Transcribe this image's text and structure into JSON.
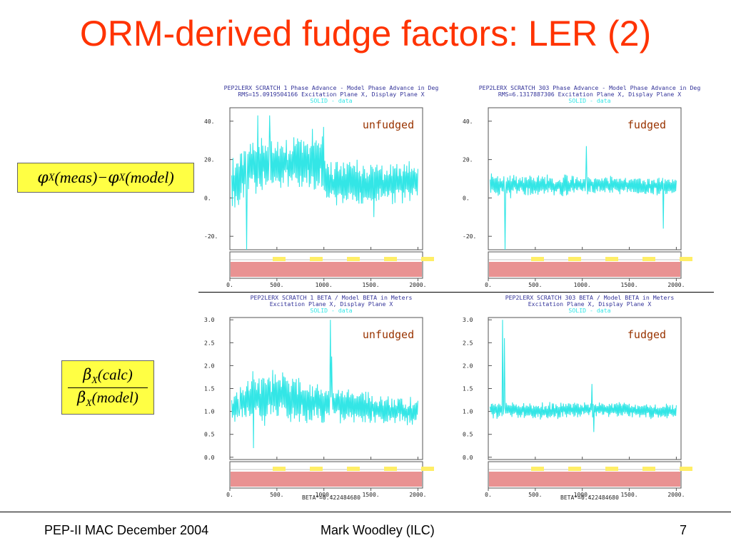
{
  "slide": {
    "title": "ORM-derived fudge factors: LER (2)",
    "footer_left": "PEP-II MAC December 2004",
    "footer_center": "Mark Woodley (ILC)",
    "page_number": "7"
  },
  "formulas": {
    "phase": {
      "phi": "φ",
      "sub": "X",
      "meas": "(meas)−",
      "model": "(model)"
    },
    "beta": {
      "beta": "β",
      "sub": "X",
      "calc": "(calc)",
      "model": "(model)"
    }
  },
  "colors": {
    "title": "#ff3300",
    "trace": "#33e6e6",
    "header_text": "#333399",
    "plot_label": "#993300",
    "bpm_label": "#cc0000"
  },
  "chart_data": [
    {
      "type": "line",
      "id": "tl",
      "header_line1": "PEP2LERX SCRATCH 1 Phase Advance - Model Phase Advance in Deg",
      "header_line2": "RMS=15.0919504166 Excitation Plane X, Display Plane X",
      "legend_text": "SOLID - data",
      "annotation": "unfudged",
      "bottom_note": "",
      "xlim": [
        0,
        2050
      ],
      "ylim": [
        -27,
        47
      ],
      "yticks": [
        40,
        20,
        0,
        -20
      ],
      "ytick_labels": [
        "40.",
        "20.",
        "0.",
        "-20."
      ],
      "xticks": [
        0,
        500,
        1000,
        1500,
        2000
      ],
      "xtick_labels": [
        "0.",
        "500.",
        "1000.",
        "1500.",
        "2000."
      ],
      "trace": {
        "n": 300,
        "seed": 11,
        "base": [
          [
            0,
            5
          ],
          [
            200,
            18
          ],
          [
            1000,
            18
          ],
          [
            1020,
            8
          ],
          [
            2000,
            8
          ]
        ],
        "amp": [
          [
            0,
            28
          ],
          [
            200,
            26
          ],
          [
            1000,
            24
          ],
          [
            1020,
            22
          ],
          [
            2000,
            18
          ]
        ],
        "spikes": [
          [
            180,
            -27
          ],
          [
            300,
            43
          ],
          [
            420,
            43
          ],
          [
            880,
            36
          ],
          [
            1000,
            37
          ],
          [
            1530,
            -10
          ]
        ]
      }
    },
    {
      "type": "line",
      "id": "tr",
      "header_line1": "PEP2LERX SCRATCH 303 Phase Advance - Model Phase Advance in Deg",
      "header_line2": "RMS=6.1317887306 Excitation Plane X, Display Plane X",
      "legend_text": "SOLID - data",
      "annotation": "fudged",
      "bottom_note": "",
      "xlim": [
        0,
        2050
      ],
      "ylim": [
        -27,
        47
      ],
      "yticks": [
        40,
        20,
        0,
        -20
      ],
      "ytick_labels": [
        "40.",
        "20.",
        "0.",
        "-20."
      ],
      "xticks": [
        0,
        500,
        1000,
        1500,
        2000
      ],
      "xtick_labels": [
        "0.",
        "500.",
        "1000.",
        "1500.",
        "2000."
      ],
      "trace": {
        "n": 300,
        "seed": 23,
        "base": [
          [
            0,
            7
          ],
          [
            500,
            6
          ],
          [
            1000,
            7
          ],
          [
            2000,
            6
          ]
        ],
        "amp": [
          [
            0,
            12
          ],
          [
            500,
            10
          ],
          [
            1000,
            9
          ],
          [
            2000,
            8
          ]
        ],
        "spikes": [
          [
            180,
            -27
          ],
          [
            1040,
            27
          ],
          [
            1860,
            -16
          ]
        ]
      }
    },
    {
      "type": "line",
      "id": "bl",
      "header_line1": "PEP2LERX SCRATCH 1 BETA / Model BETA in Meters",
      "header_line2": "Excitation Plane X, Display Plane X",
      "legend_text": "SOLID - data",
      "annotation": "unfudged",
      "bottom_note": "BETA*=0.422484680",
      "xlim": [
        0,
        2050
      ],
      "ylim": [
        -0.05,
        3.05
      ],
      "yticks": [
        3.0,
        2.5,
        2.0,
        1.5,
        1.0,
        0.5,
        0.0
      ],
      "ytick_labels": [
        "3.0",
        "2.5",
        "2.0",
        "1.5",
        "1.0",
        "0.5",
        "0.0"
      ],
      "xticks": [
        0,
        500,
        1000,
        1500,
        2000
      ],
      "xtick_labels": [
        "0.",
        "500.",
        "1000.",
        "1500.",
        "2000."
      ],
      "trace": {
        "n": 300,
        "seed": 37,
        "base": [
          [
            0,
            1.05
          ],
          [
            200,
            1.25
          ],
          [
            500,
            1.35
          ],
          [
            1000,
            1.15
          ],
          [
            2000,
            1.0
          ]
        ],
        "amp": [
          [
            0,
            0.55
          ],
          [
            200,
            1.1
          ],
          [
            600,
            1.0
          ],
          [
            1000,
            0.7
          ],
          [
            2000,
            0.55
          ]
        ],
        "spikes": [
          [
            100,
            0.9
          ],
          [
            250,
            0.2
          ],
          [
            1070,
            3.0
          ],
          [
            1080,
            2.2
          ]
        ]
      }
    },
    {
      "type": "line",
      "id": "br",
      "header_line1": "PEP2LERX SCRATCH 303 BETA / Model BETA in Meters",
      "header_line2": "Excitation Plane X, Display Plane X",
      "legend_text": "SOLID - data",
      "annotation": "fudged",
      "bottom_note": "BETA*=0.422484680",
      "xlim": [
        0,
        2050
      ],
      "ylim": [
        -0.05,
        3.05
      ],
      "yticks": [
        3.0,
        2.5,
        2.0,
        1.5,
        1.0,
        0.5,
        0.0
      ],
      "ytick_labels": [
        "3.0",
        "2.5",
        "2.0",
        "1.5",
        "1.0",
        "0.5",
        "0.0"
      ],
      "xticks": [
        0,
        500,
        1000,
        1500,
        2000
      ],
      "xtick_labels": [
        "0.",
        "500.",
        "1000.",
        "1500.",
        "2000."
      ],
      "trace": {
        "n": 300,
        "seed": 53,
        "base": [
          [
            0,
            1.05
          ],
          [
            500,
            1.0
          ],
          [
            1000,
            1.05
          ],
          [
            2000,
            1.0
          ]
        ],
        "amp": [
          [
            0,
            0.35
          ],
          [
            500,
            0.32
          ],
          [
            1000,
            0.3
          ],
          [
            2000,
            0.3
          ]
        ],
        "spikes": [
          [
            150,
            3.0
          ],
          [
            170,
            2.6
          ],
          [
            1100,
            1.6
          ],
          [
            1120,
            0.55
          ]
        ]
      }
    }
  ]
}
